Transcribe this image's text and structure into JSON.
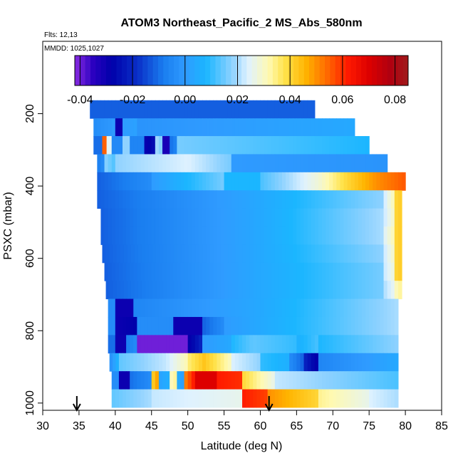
{
  "chart_data": {
    "type": "heatmap",
    "title": "ATOM3 Northeast_Pacific_2 MS_Abs_580nm",
    "subtitle_flights": "Flts: 12,13",
    "subtitle_dates": "MMDD: 1025,1027",
    "xlabel": "Latitude (deg N)",
    "ylabel": "PSXC (mbar)",
    "xlim": [
      30,
      85
    ],
    "ylim": [
      1020,
      0
    ],
    "x_ticks": [
      "30",
      "35",
      "40",
      "45",
      "50",
      "55",
      "60",
      "65",
      "70",
      "75",
      "80",
      "85"
    ],
    "y_ticks": [
      "200",
      "400",
      "600",
      "800",
      "1000"
    ],
    "colorbar": {
      "range": [
        -0.042,
        0.085
      ],
      "ticks": [
        "-0.04",
        "-0.02",
        "0.00",
        "0.02",
        "0.04",
        "0.06",
        "0.08"
      ],
      "stops": [
        {
          "v": -0.042,
          "c": "#8a2be2"
        },
        {
          "v": -0.035,
          "c": "#2a00c0"
        },
        {
          "v": -0.028,
          "c": "#0000aa"
        },
        {
          "v": -0.018,
          "c": "#0a30c8"
        },
        {
          "v": -0.008,
          "c": "#1a7ef0"
        },
        {
          "v": 0.0,
          "c": "#2f9bff"
        },
        {
          "v": 0.008,
          "c": "#1bb6ff"
        },
        {
          "v": 0.018,
          "c": "#8fd2ff"
        },
        {
          "v": 0.024,
          "c": "#dff2ff"
        },
        {
          "v": 0.032,
          "c": "#fff9b0"
        },
        {
          "v": 0.038,
          "c": "#ffe24a"
        },
        {
          "v": 0.046,
          "c": "#ffb400"
        },
        {
          "v": 0.054,
          "c": "#ff6a00"
        },
        {
          "v": 0.062,
          "c": "#ff1a00"
        },
        {
          "v": 0.07,
          "c": "#dd0000"
        },
        {
          "v": 0.078,
          "c": "#b00010"
        },
        {
          "v": 0.085,
          "c": "#a01a1a"
        }
      ]
    },
    "arrows_latitude": [
      34.7,
      61.2
    ],
    "bands": [
      {
        "p_top": 163,
        "p_bot": 213,
        "x0": 36.5,
        "x1": 67.5,
        "segments": [
          [
            36.5,
            67.5,
            -0.012,
            -0.012
          ]
        ]
      },
      {
        "p_top": 213,
        "p_bot": 262,
        "x0": 37.0,
        "x1": 73.0,
        "segments": [
          [
            37.0,
            40.0,
            -0.004,
            0.0
          ],
          [
            40.0,
            41.0,
            -0.03,
            -0.03
          ],
          [
            41.0,
            43.0,
            0.0,
            0.002
          ],
          [
            43.0,
            73.0,
            -0.002,
            0.004
          ]
        ]
      },
      {
        "p_top": 262,
        "p_bot": 312,
        "x0": 37.0,
        "x1": 75.0,
        "segments": [
          [
            37.0,
            38.2,
            -0.01,
            -0.01
          ],
          [
            38.2,
            38.8,
            0.055,
            0.055
          ],
          [
            38.8,
            39.5,
            0.03,
            0.02
          ],
          [
            39.5,
            41.0,
            -0.005,
            -0.005
          ],
          [
            41.0,
            42.0,
            0.018,
            0.018
          ],
          [
            42.0,
            44.0,
            -0.006,
            -0.006
          ],
          [
            44.0,
            45.5,
            -0.03,
            -0.025
          ],
          [
            45.5,
            46.5,
            0.02,
            0.016
          ],
          [
            46.5,
            47.5,
            -0.032,
            -0.032
          ],
          [
            47.5,
            48.5,
            -0.01,
            -0.006
          ],
          [
            48.5,
            75.0,
            0.016,
            0.008
          ]
        ]
      },
      {
        "p_top": 312,
        "p_bot": 362,
        "x0": 37.5,
        "x1": 77.5,
        "segments": [
          [
            37.5,
            38.5,
            -0.008,
            -0.004
          ],
          [
            38.5,
            40.0,
            0.018,
            0.012
          ],
          [
            40.0,
            50.0,
            0.018,
            0.024
          ],
          [
            50.0,
            56.0,
            0.024,
            0.016
          ],
          [
            56.0,
            77.5,
            0.0,
            -0.002
          ]
        ]
      },
      {
        "p_top": 362,
        "p_bot": 412,
        "x0": 37.5,
        "x1": 80.0,
        "segments": [
          [
            37.5,
            45.0,
            -0.012,
            -0.004
          ],
          [
            45.0,
            55.0,
            0.0,
            0.016
          ],
          [
            55.0,
            60.0,
            0.008,
            0.008
          ],
          [
            60.0,
            68.0,
            0.012,
            0.028
          ],
          [
            68.0,
            72.0,
            0.028,
            0.04
          ],
          [
            72.0,
            76.0,
            0.04,
            0.05
          ],
          [
            76.0,
            80.0,
            0.05,
            0.056
          ]
        ]
      },
      {
        "p_top": 412,
        "p_bot": 462,
        "x0": 37.5,
        "x1": 79.5,
        "segments": [
          [
            37.5,
            60.0,
            -0.012,
            0.004
          ],
          [
            60.0,
            77.0,
            0.004,
            0.018
          ],
          [
            77.0,
            78.5,
            0.022,
            0.032
          ],
          [
            78.5,
            79.5,
            0.04,
            0.042
          ]
        ]
      },
      {
        "p_top": 462,
        "p_bot": 512,
        "x0": 38.0,
        "x1": 79.5,
        "segments": [
          [
            38.0,
            60.0,
            -0.012,
            0.004
          ],
          [
            60.0,
            77.0,
            0.004,
            0.02
          ],
          [
            77.0,
            78.5,
            0.022,
            0.03
          ],
          [
            78.5,
            79.5,
            0.04,
            0.042
          ]
        ]
      },
      {
        "p_top": 512,
        "p_bot": 562,
        "x0": 38.0,
        "x1": 79.5,
        "segments": [
          [
            38.0,
            60.0,
            -0.012,
            0.004
          ],
          [
            60.0,
            77.0,
            0.004,
            0.02
          ],
          [
            77.0,
            78.5,
            0.024,
            0.032
          ],
          [
            78.5,
            79.5,
            0.04,
            0.042
          ]
        ]
      },
      {
        "p_top": 562,
        "p_bot": 612,
        "x0": 38.2,
        "x1": 79.5,
        "segments": [
          [
            38.2,
            60.0,
            -0.012,
            0.004
          ],
          [
            60.0,
            77.0,
            0.004,
            0.018
          ],
          [
            77.0,
            78.5,
            0.022,
            0.03
          ],
          [
            78.5,
            79.5,
            0.04,
            0.042
          ]
        ]
      },
      {
        "p_top": 612,
        "p_bot": 662,
        "x0": 38.5,
        "x1": 79.5,
        "segments": [
          [
            38.5,
            60.0,
            -0.012,
            0.004
          ],
          [
            60.0,
            77.0,
            0.004,
            0.016
          ],
          [
            77.0,
            78.5,
            0.022,
            0.028
          ],
          [
            78.5,
            79.5,
            0.04,
            0.042
          ]
        ]
      },
      {
        "p_top": 662,
        "p_bot": 712,
        "x0": 38.7,
        "x1": 79.5,
        "segments": [
          [
            38.7,
            60.0,
            -0.012,
            0.004
          ],
          [
            60.0,
            77.0,
            0.004,
            0.016
          ],
          [
            77.0,
            78.5,
            0.02,
            0.026
          ],
          [
            78.5,
            79.5,
            0.03,
            0.034
          ]
        ]
      },
      {
        "p_top": 712,
        "p_bot": 762,
        "x0": 39.0,
        "x1": 79.0,
        "segments": [
          [
            39.0,
            40.0,
            -0.004,
            -0.004
          ],
          [
            40.0,
            42.5,
            -0.03,
            -0.03
          ],
          [
            42.5,
            60.0,
            -0.006,
            0.004
          ],
          [
            60.0,
            79.0,
            0.004,
            0.02
          ]
        ]
      },
      {
        "p_top": 762,
        "p_bot": 812,
        "x0": 39.0,
        "x1": 79.0,
        "segments": [
          [
            39.0,
            40.0,
            -0.004,
            -0.004
          ],
          [
            40.0,
            43.0,
            -0.03,
            -0.028
          ],
          [
            43.0,
            48.0,
            -0.004,
            -0.004
          ],
          [
            48.0,
            52.0,
            -0.03,
            -0.03
          ],
          [
            52.0,
            55.0,
            -0.012,
            -0.004
          ],
          [
            55.0,
            79.0,
            0.0,
            0.02
          ]
        ]
      },
      {
        "p_top": 812,
        "p_bot": 862,
        "x0": 39.0,
        "x1": 79.0,
        "segments": [
          [
            39.0,
            40.0,
            -0.01,
            -0.01
          ],
          [
            40.0,
            41.5,
            -0.03,
            -0.03
          ],
          [
            41.5,
            43.0,
            -0.008,
            -0.004
          ],
          [
            43.0,
            50.0,
            -0.04,
            -0.04
          ],
          [
            50.0,
            52.0,
            -0.03,
            -0.02
          ],
          [
            52.0,
            56.0,
            0.0,
            0.004
          ],
          [
            56.0,
            59.0,
            0.008,
            0.014
          ],
          [
            59.0,
            65.0,
            0.014,
            0.01
          ],
          [
            65.0,
            68.0,
            0.006,
            0.012
          ],
          [
            68.0,
            79.0,
            0.008,
            0.018
          ]
        ]
      },
      {
        "p_top": 862,
        "p_bot": 912,
        "x0": 39.2,
        "x1": 79.0,
        "segments": [
          [
            39.2,
            40.5,
            -0.004,
            0.008
          ],
          [
            40.5,
            47.0,
            0.014,
            0.022
          ],
          [
            47.0,
            50.0,
            0.022,
            0.032
          ],
          [
            50.0,
            52.0,
            0.035,
            0.042
          ],
          [
            52.0,
            56.0,
            0.044,
            0.03
          ],
          [
            56.0,
            60.0,
            0.024,
            0.018
          ],
          [
            60.0,
            64.0,
            0.01,
            0.006
          ],
          [
            64.0,
            66.0,
            -0.004,
            -0.012
          ],
          [
            66.0,
            68.0,
            -0.02,
            -0.03
          ],
          [
            68.0,
            79.0,
            -0.006,
            0.004
          ]
        ]
      },
      {
        "p_top": 912,
        "p_bot": 962,
        "x0": 39.5,
        "x1": 79.0,
        "segments": [
          [
            39.5,
            40.5,
            -0.004,
            -0.004
          ],
          [
            40.5,
            42.0,
            -0.03,
            -0.03
          ],
          [
            42.0,
            45.0,
            -0.01,
            -0.004
          ],
          [
            45.0,
            46.0,
            0.04,
            0.05
          ],
          [
            46.0,
            47.5,
            0.002,
            0.006
          ],
          [
            47.5,
            48.5,
            0.03,
            0.034
          ],
          [
            48.5,
            49.5,
            0.006,
            0.0
          ],
          [
            49.5,
            51.0,
            0.05,
            0.064
          ],
          [
            51.0,
            54.0,
            0.07,
            0.07
          ],
          [
            54.0,
            57.5,
            0.062,
            0.06
          ],
          [
            57.5,
            62.0,
            0.04,
            0.026
          ],
          [
            62.0,
            79.0,
            0.022,
            0.012
          ]
        ]
      },
      {
        "p_top": 962,
        "p_bot": 1012,
        "x0": 39.5,
        "x1": 79.0,
        "segments": [
          [
            39.5,
            45.0,
            0.014,
            0.02
          ],
          [
            45.0,
            50.0,
            0.022,
            0.024
          ],
          [
            50.0,
            57.5,
            0.024,
            0.026
          ],
          [
            57.5,
            61.0,
            0.062,
            0.058
          ],
          [
            61.0,
            68.0,
            0.05,
            0.04
          ],
          [
            68.0,
            75.0,
            0.034,
            0.026
          ],
          [
            75.0,
            79.0,
            0.024,
            0.02
          ]
        ]
      }
    ]
  }
}
